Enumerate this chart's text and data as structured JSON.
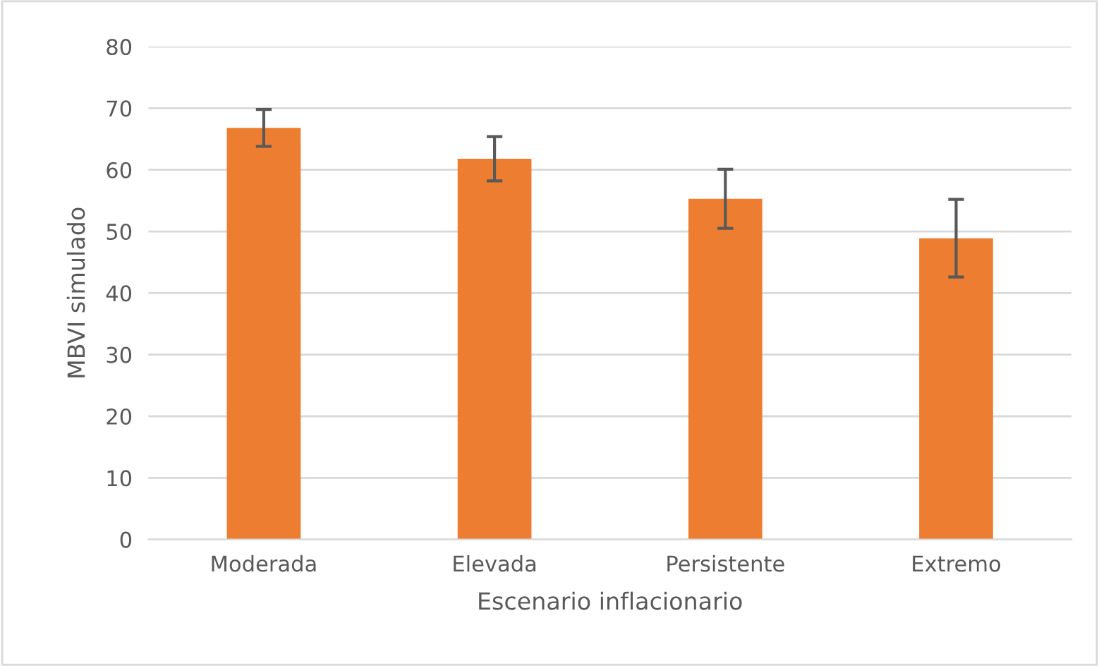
{
  "chart_data": {
    "type": "bar",
    "xlabel": "Escenario inflacionario",
    "ylabel": "MBVI simulado",
    "categories": [
      "Moderada",
      "Elevada",
      "Persistente",
      "Extremo"
    ],
    "series": [
      {
        "color": "#ed7d31",
        "values": [
          66.8,
          61.8,
          55.3,
          48.9
        ],
        "errors": [
          3.0,
          3.6,
          4.8,
          6.3
        ]
      }
    ],
    "ylim": [
      0,
      80
    ],
    "yticks": [
      0,
      10,
      20,
      30,
      40,
      50,
      60,
      70,
      80
    ],
    "grid": "y",
    "legend": false
  }
}
